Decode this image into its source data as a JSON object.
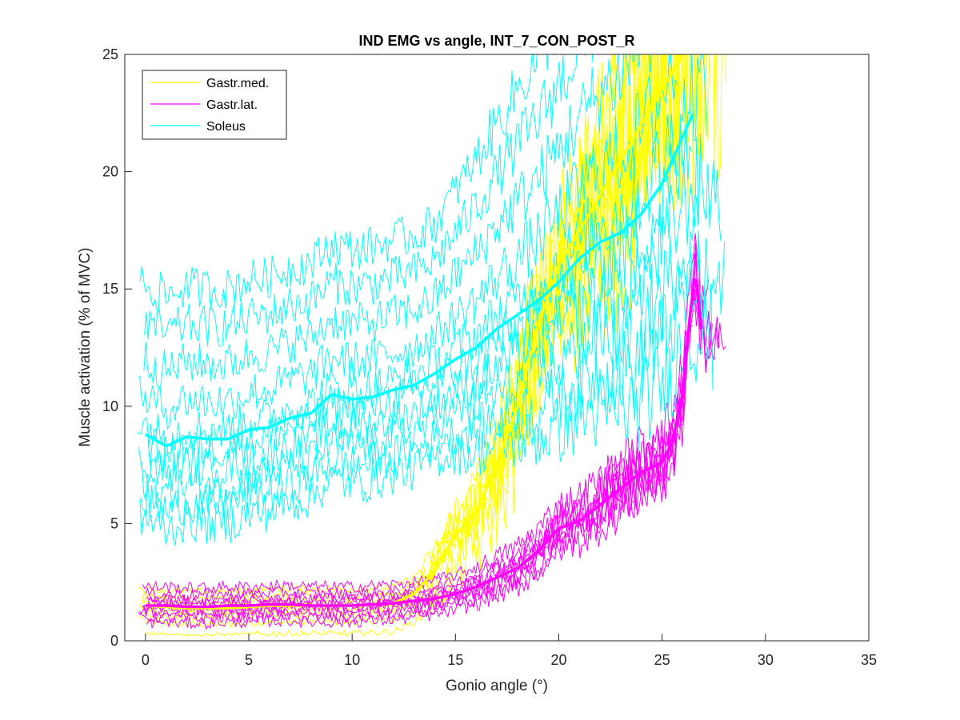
{
  "chart_data": {
    "type": "line",
    "title": "IND EMG vs angle, INT_7_CON_POST_R",
    "xlabel": "Gonio angle (°)",
    "ylabel": "Muscle activation (% of MVC)",
    "xlim": [
      -1,
      35
    ],
    "ylim": [
      0,
      25
    ],
    "xticks": [
      0,
      5,
      10,
      15,
      20,
      25,
      30,
      35
    ],
    "yticks": [
      0,
      5,
      10,
      15,
      20,
      25
    ],
    "legend_position": "top-left",
    "grid": false,
    "series": [
      {
        "name": "Gastr.med.",
        "color": "#ffff00",
        "mean": {
          "x": [
            0,
            2,
            4,
            6,
            8,
            10,
            12,
            13,
            14,
            15,
            16,
            17,
            18,
            19,
            20,
            21,
            22,
            23,
            24,
            25,
            26
          ],
          "y": [
            1.5,
            1.4,
            1.4,
            1.5,
            1.5,
            1.5,
            1.6,
            2.0,
            3.0,
            4.5,
            5.5,
            7.5,
            10.0,
            13.5,
            16.0,
            17.5,
            19.0,
            20.5,
            22.0,
            23.5,
            25.0
          ]
        }
      },
      {
        "name": "Gastr.lat.",
        "color": "#ff00ff",
        "mean": {
          "x": [
            0,
            1,
            2,
            3,
            4,
            5,
            6,
            7,
            8,
            9,
            10,
            11,
            12,
            13,
            14,
            15,
            16,
            17,
            18,
            19,
            20,
            21,
            22,
            23,
            24,
            25,
            25.5,
            26,
            26.3,
            26.6,
            26.9
          ],
          "y": [
            1.5,
            1.5,
            1.45,
            1.45,
            1.5,
            1.5,
            1.55,
            1.55,
            1.5,
            1.5,
            1.5,
            1.55,
            1.6,
            1.7,
            1.8,
            2.0,
            2.3,
            2.7,
            3.1,
            3.8,
            4.8,
            5.1,
            5.8,
            6.5,
            7.2,
            7.6,
            8.5,
            10.5,
            13.5,
            15.7,
            13.1
          ]
        }
      },
      {
        "name": "Soleus",
        "color": "#00ffff",
        "mean": {
          "x": [
            0,
            1,
            2,
            3,
            4,
            5,
            6,
            7,
            8,
            9,
            10,
            11,
            12,
            13,
            14,
            15,
            16,
            17,
            18,
            19,
            20,
            21,
            22,
            23,
            24,
            25,
            26,
            26.5
          ],
          "y": [
            8.8,
            8.3,
            8.7,
            8.6,
            8.6,
            9.0,
            9.1,
            9.5,
            9.7,
            10.5,
            10.3,
            10.4,
            10.7,
            10.9,
            11.4,
            12.0,
            12.5,
            13.3,
            13.9,
            14.5,
            15.3,
            16.3,
            17.0,
            17.4,
            18.2,
            19.5,
            21.5,
            22.5
          ]
        }
      }
    ]
  }
}
